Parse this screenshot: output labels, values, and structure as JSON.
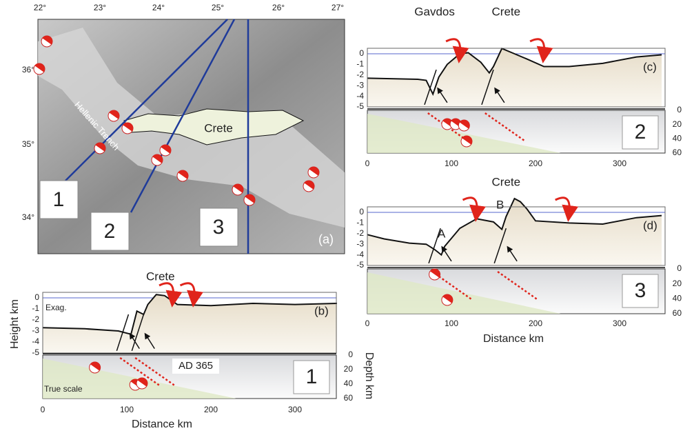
{
  "map": {
    "label": "(a)",
    "lon_labels": [
      "22°",
      "23°",
      "24°",
      "25°",
      "26°",
      "27°"
    ],
    "lat_labels": [
      "36°",
      "35°",
      "34°"
    ],
    "place": "Crete",
    "trench": "Hellenic Trench",
    "profile_labels": [
      "1",
      "2",
      "3"
    ]
  },
  "profiles": [
    {
      "label": "(b)",
      "number": "1",
      "place_labels": [
        "Crete"
      ],
      "height_axis": "Height km",
      "depth_axis": "Depth km",
      "x_axis": "Distance km",
      "exag": "Exag.",
      "true_scale": "True scale",
      "event": "AD 365",
      "height_ticks": [
        "0",
        "-1",
        "-2",
        "-3",
        "-4",
        "-5"
      ],
      "depth_ticks": [
        "0",
        "20",
        "40",
        "60"
      ],
      "distance_ticks": [
        "0",
        "100",
        "200",
        "300"
      ]
    },
    {
      "label": "(c)",
      "number": "2",
      "place_labels": [
        "Gavdos",
        "Crete"
      ],
      "height_ticks": [
        "0",
        "-1",
        "-2",
        "-3",
        "-4",
        "-5"
      ],
      "depth_ticks": [
        "0",
        "20",
        "40",
        "60"
      ],
      "distance_ticks": [
        "0",
        "100",
        "200",
        "300"
      ]
    },
    {
      "label": "(d)",
      "number": "3",
      "place_labels": [
        "Crete"
      ],
      "fault_labels": [
        "A",
        "B"
      ],
      "x_axis": "Distance km",
      "height_ticks": [
        "0",
        "-1",
        "-2",
        "-3",
        "-4",
        "-5"
      ],
      "depth_ticks": [
        "0",
        "20",
        "40",
        "60"
      ],
      "distance_ticks": [
        "0",
        "100",
        "200",
        "300"
      ]
    }
  ]
}
